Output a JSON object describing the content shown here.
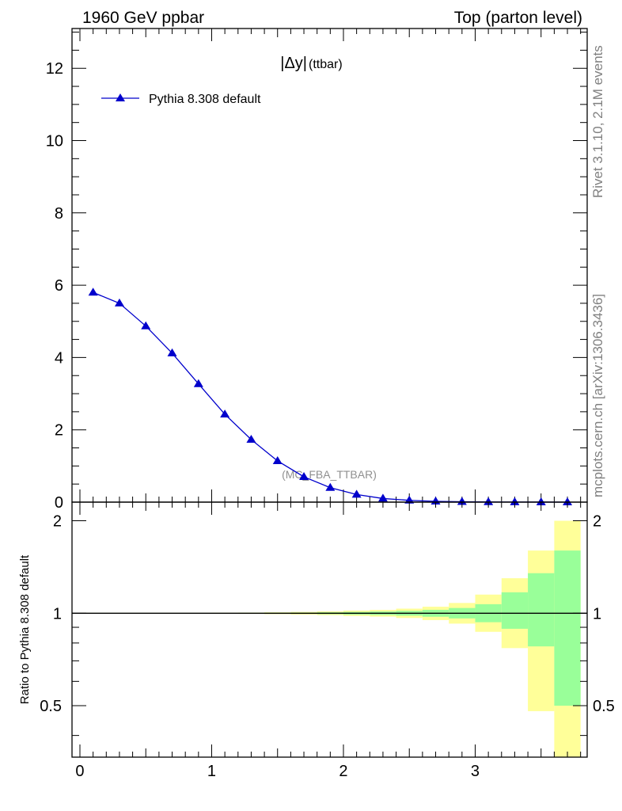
{
  "header": {
    "left": "1960 GeV ppbar",
    "right": "Top (parton level)"
  },
  "side": {
    "rivet": "Rivet 3.1.10,  2.1M events",
    "mcplots": "mcplots.cern.ch [arXiv:1306.3436]"
  },
  "chart_data": [
    {
      "type": "line",
      "title_main": "|Δy|",
      "title_sub": "(ttbar)",
      "watermark": "(MC_FBA_TTBAR)",
      "xlim": [
        -0.06,
        3.85
      ],
      "ylim": [
        0,
        13.1
      ],
      "yticks": [
        0,
        2,
        4,
        6,
        8,
        10,
        12
      ],
      "ytick_labels": [
        "0",
        "2",
        "4",
        "6",
        "8",
        "10",
        "12"
      ],
      "legend_position": "top-left",
      "series": [
        {
          "name": "Pythia 8.308 default",
          "color": "#0000cc",
          "marker": "triangle",
          "x": [
            0.1,
            0.3,
            0.5,
            0.7,
            0.9,
            1.1,
            1.3,
            1.5,
            1.7,
            1.9,
            2.1,
            2.3,
            2.5,
            2.7,
            2.9,
            3.1,
            3.3,
            3.5,
            3.7
          ],
          "y": [
            5.8,
            5.5,
            4.87,
            4.12,
            3.27,
            2.43,
            1.73,
            1.14,
            0.7,
            0.4,
            0.21,
            0.1,
            0.05,
            0.022,
            0.01,
            0.005,
            0.002,
            0.001,
            0.0005
          ]
        }
      ]
    },
    {
      "type": "area",
      "ylabel": "Ratio to Pythia 8.308 default",
      "xlim": [
        -0.06,
        3.85
      ],
      "ylim": [
        0.34,
        2.3
      ],
      "yticks": [
        0.5,
        1,
        2
      ],
      "ytick_labels": [
        "0.5",
        "1",
        "2"
      ],
      "xticks": [
        0,
        1,
        2,
        3
      ],
      "xtick_labels": [
        "0",
        "1",
        "2",
        "3"
      ],
      "reference": 1,
      "bins": [
        0.0,
        0.2,
        0.4,
        0.6,
        0.8,
        1.0,
        1.2,
        1.4,
        1.6,
        1.8,
        2.0,
        2.2,
        2.4,
        2.6,
        2.8,
        3.0,
        3.2,
        3.4,
        3.6,
        3.8
      ],
      "band_inner": [
        {
          "lo": 0.998,
          "hi": 1.002
        },
        {
          "lo": 0.998,
          "hi": 1.002
        },
        {
          "lo": 0.998,
          "hi": 1.002
        },
        {
          "lo": 0.998,
          "hi": 1.002
        },
        {
          "lo": 0.998,
          "hi": 1.002
        },
        {
          "lo": 0.998,
          "hi": 1.002
        },
        {
          "lo": 0.997,
          "hi": 1.003
        },
        {
          "lo": 0.996,
          "hi": 1.004
        },
        {
          "lo": 0.995,
          "hi": 1.005
        },
        {
          "lo": 0.993,
          "hi": 1.007
        },
        {
          "lo": 0.99,
          "hi": 1.01
        },
        {
          "lo": 0.987,
          "hi": 1.013
        },
        {
          "lo": 0.982,
          "hi": 1.018
        },
        {
          "lo": 0.974,
          "hi": 1.026
        },
        {
          "lo": 0.962,
          "hi": 1.04
        },
        {
          "lo": 0.935,
          "hi": 1.07
        },
        {
          "lo": 0.89,
          "hi": 1.17
        },
        {
          "lo": 0.78,
          "hi": 1.35
        },
        {
          "lo": 0.5,
          "hi": 1.6
        }
      ],
      "band_outer": [
        {
          "lo": 0.997,
          "hi": 1.003
        },
        {
          "lo": 0.997,
          "hi": 1.003
        },
        {
          "lo": 0.997,
          "hi": 1.003
        },
        {
          "lo": 0.997,
          "hi": 1.003
        },
        {
          "lo": 0.997,
          "hi": 1.003
        },
        {
          "lo": 0.996,
          "hi": 1.004
        },
        {
          "lo": 0.995,
          "hi": 1.005
        },
        {
          "lo": 0.993,
          "hi": 1.007
        },
        {
          "lo": 0.99,
          "hi": 1.01
        },
        {
          "lo": 0.986,
          "hi": 1.014
        },
        {
          "lo": 0.98,
          "hi": 1.02
        },
        {
          "lo": 0.975,
          "hi": 1.025
        },
        {
          "lo": 0.965,
          "hi": 1.035
        },
        {
          "lo": 0.95,
          "hi": 1.05
        },
        {
          "lo": 0.925,
          "hi": 1.08
        },
        {
          "lo": 0.87,
          "hi": 1.15
        },
        {
          "lo": 0.77,
          "hi": 1.3
        },
        {
          "lo": 0.48,
          "hi": 1.6
        },
        {
          "lo": 0.34,
          "hi": 2.0
        }
      ],
      "colors": {
        "inner": "#99ff99",
        "outer": "#ffff99",
        "line": "#000000"
      }
    }
  ]
}
